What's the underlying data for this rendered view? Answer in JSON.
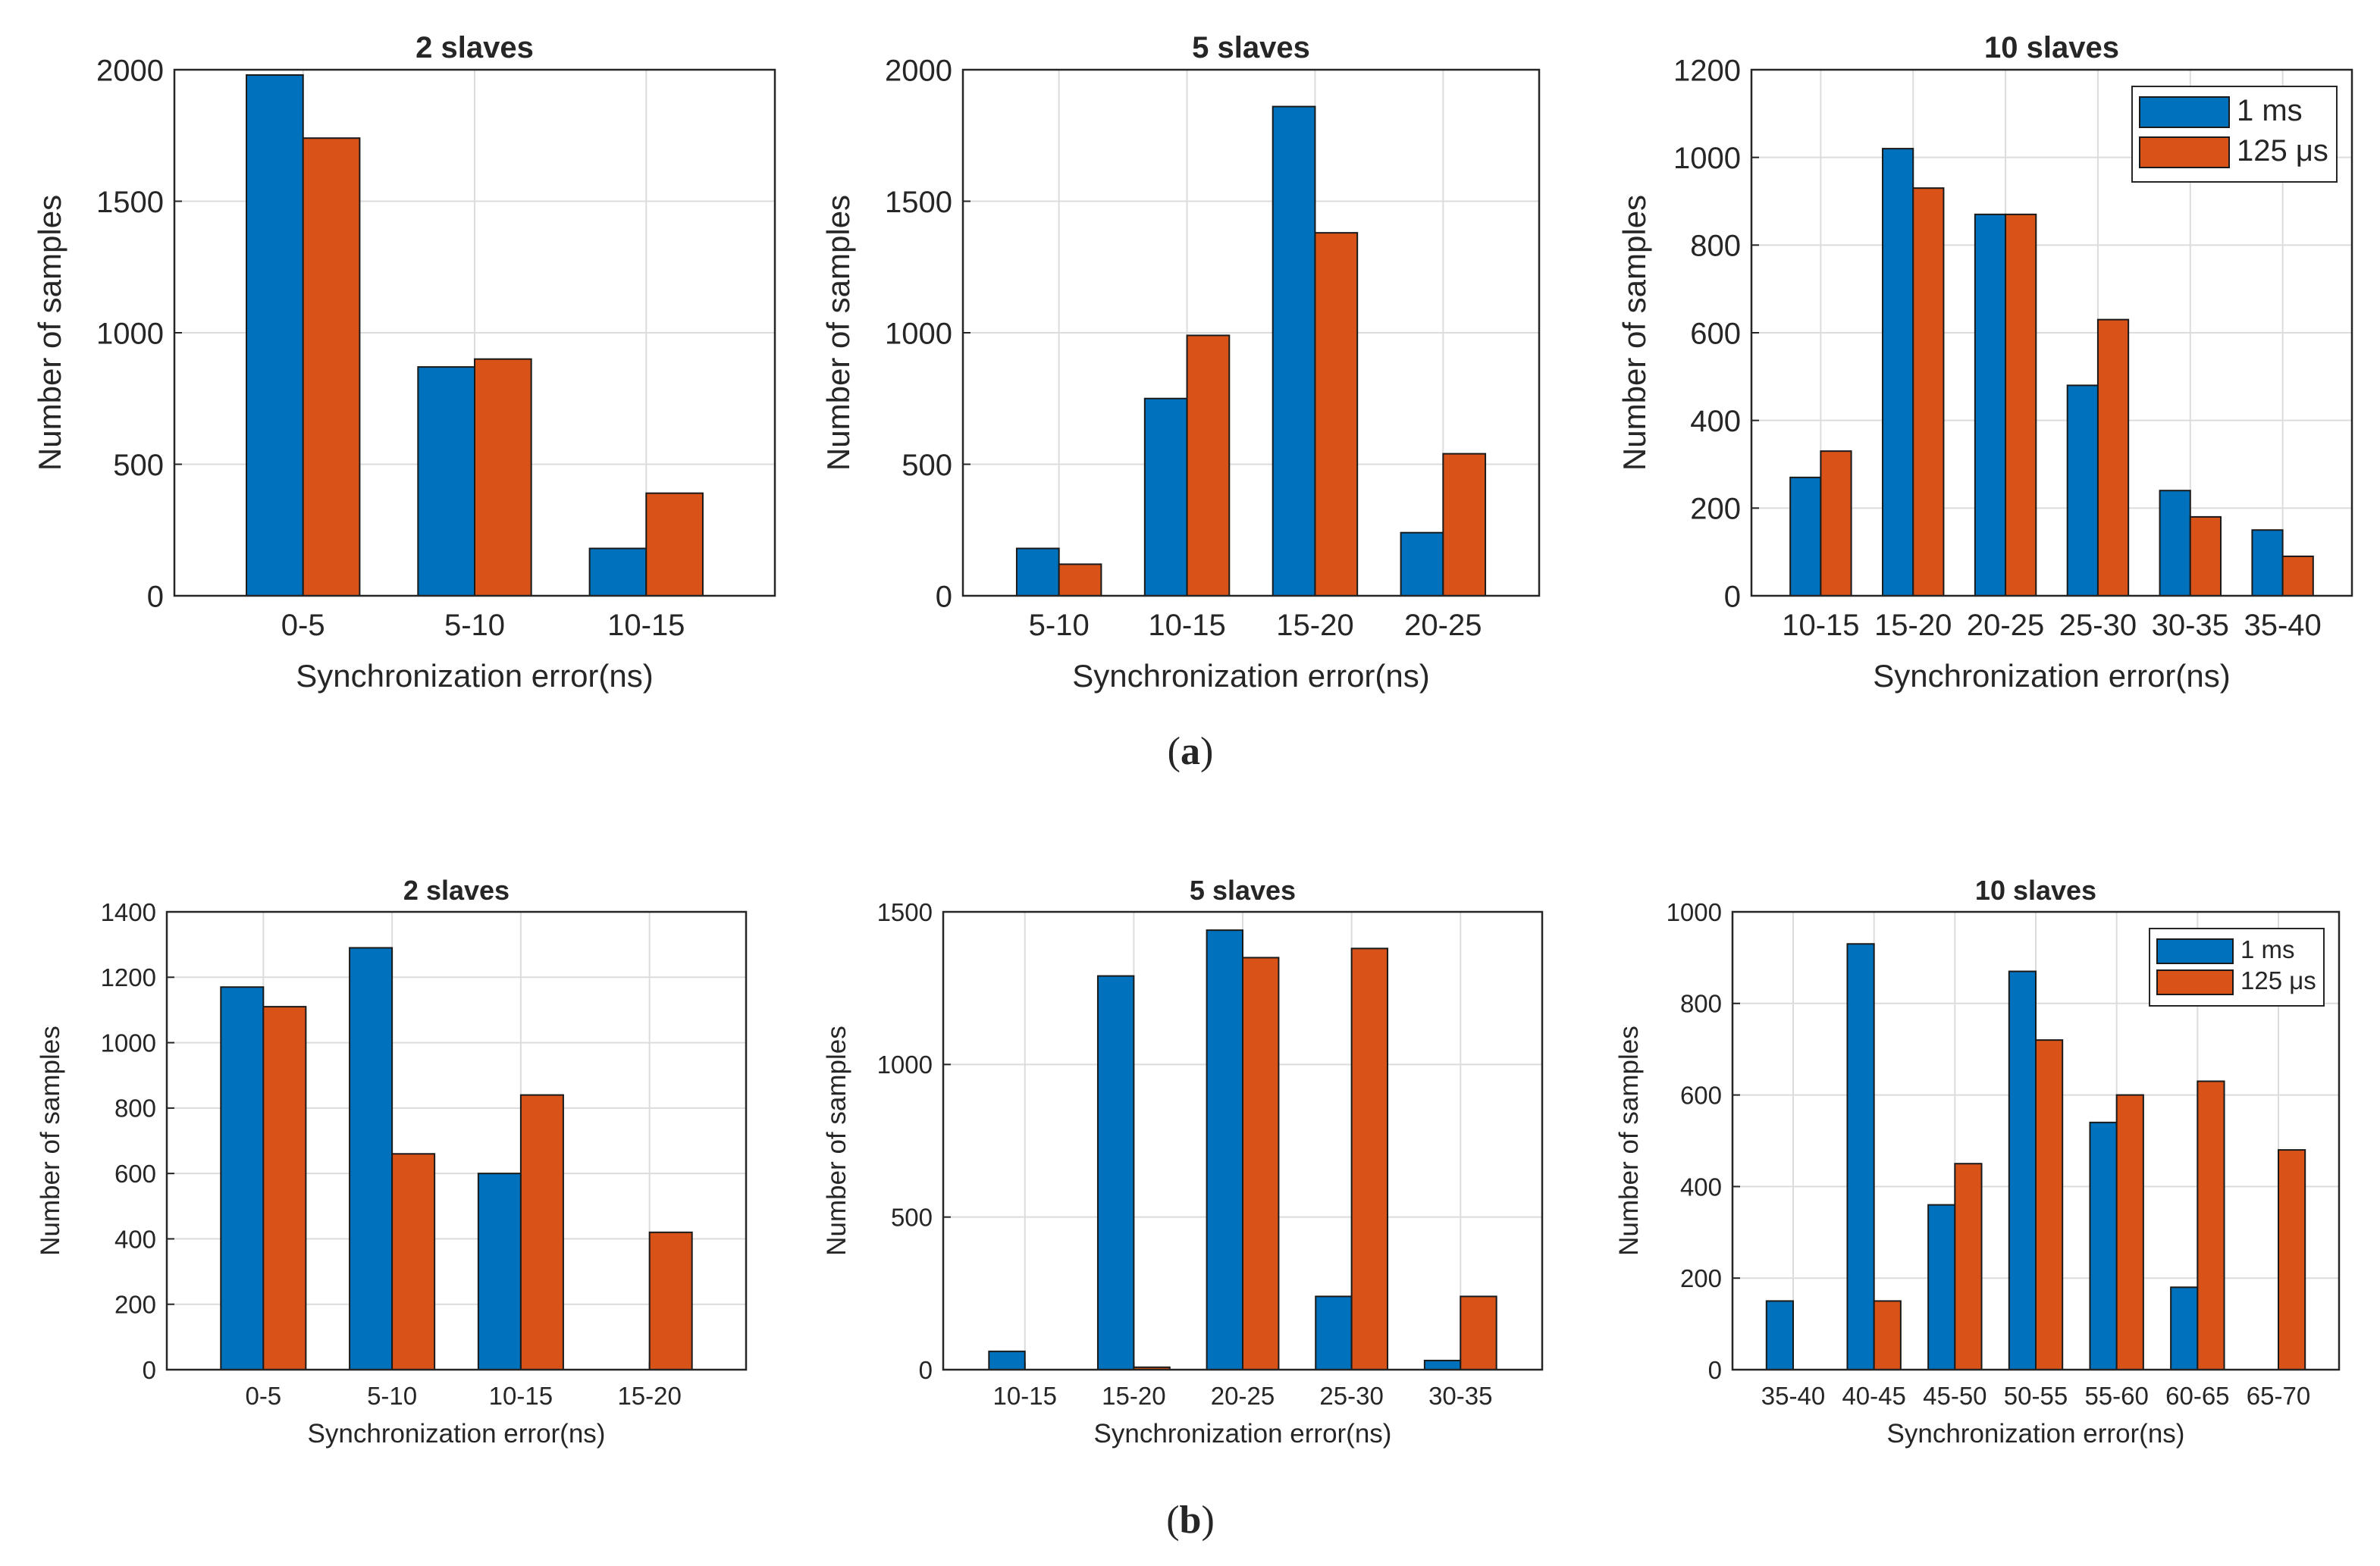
{
  "figure": {
    "panel_labels": [
      {
        "prefix": "(",
        "letter": "a",
        "suffix": ")"
      },
      {
        "prefix": "(",
        "letter": "b",
        "suffix": ")"
      }
    ]
  },
  "colors": {
    "series_1ms": "#0072BD",
    "series_125us": "#D95319",
    "grid": "#dcdcdc",
    "axis": "#262626"
  },
  "chart_data": [
    {
      "id": "a-2-slaves",
      "type": "bar",
      "title": "2 slaves",
      "xlabel": "Synchronization error(ns)",
      "ylabel": "Number of samples",
      "categories": [
        "0-5",
        "5-10",
        "10-15"
      ],
      "ylim": [
        0,
        2000
      ],
      "yticks": [
        0,
        500,
        1000,
        1500,
        2000
      ],
      "series": [
        {
          "name": "1 ms",
          "values": [
            1980,
            870,
            180
          ]
        },
        {
          "name": "125 μs",
          "values": [
            1740,
            900,
            390
          ]
        }
      ]
    },
    {
      "id": "a-5-slaves",
      "type": "bar",
      "title": "5 slaves",
      "xlabel": "Synchronization error(ns)",
      "ylabel": "Number of samples",
      "categories": [
        "5-10",
        "10-15",
        "15-20",
        "20-25"
      ],
      "ylim": [
        0,
        2000
      ],
      "yticks": [
        0,
        500,
        1000,
        1500,
        2000
      ],
      "series": [
        {
          "name": "1 ms",
          "values": [
            180,
            750,
            1860,
            240
          ]
        },
        {
          "name": "125 μs",
          "values": [
            120,
            990,
            1380,
            540
          ]
        }
      ]
    },
    {
      "id": "a-10-slaves",
      "type": "bar",
      "title": "10 slaves",
      "xlabel": "Synchronization error(ns)",
      "ylabel": "Number of samples",
      "categories": [
        "10-15",
        "15-20",
        "20-25",
        "25-30",
        "30-35",
        "35-40"
      ],
      "ylim": [
        0,
        1200
      ],
      "yticks": [
        0,
        200,
        400,
        600,
        800,
        1000,
        1200
      ],
      "legend": {
        "position": "top-right",
        "entries": [
          "1 ms",
          "125 μs"
        ]
      },
      "series": [
        {
          "name": "1 ms",
          "values": [
            270,
            1020,
            870,
            480,
            240,
            150
          ]
        },
        {
          "name": "125 μs",
          "values": [
            330,
            930,
            870,
            630,
            180,
            90
          ]
        }
      ]
    },
    {
      "id": "b-2-slaves",
      "type": "bar",
      "title": "2 slaves",
      "xlabel": "Synchronization error(ns)",
      "ylabel": "Number of samples",
      "categories": [
        "0-5",
        "5-10",
        "10-15",
        "15-20"
      ],
      "ylim": [
        0,
        1400
      ],
      "yticks": [
        0,
        200,
        400,
        600,
        800,
        1000,
        1200,
        1400
      ],
      "series": [
        {
          "name": "1 ms",
          "values": [
            1170,
            1290,
            600,
            0
          ]
        },
        {
          "name": "125 μs",
          "values": [
            1110,
            660,
            840,
            420
          ]
        }
      ]
    },
    {
      "id": "b-5-slaves",
      "type": "bar",
      "title": "5 slaves",
      "xlabel": "Synchronization error(ns)",
      "ylabel": "Number of samples",
      "categories": [
        "10-15",
        "15-20",
        "20-25",
        "25-30",
        "30-35"
      ],
      "ylim": [
        0,
        1500
      ],
      "yticks": [
        0,
        500,
        1000,
        1500
      ],
      "series": [
        {
          "name": "1 ms",
          "values": [
            60,
            1290,
            1440,
            240,
            30
          ]
        },
        {
          "name": "125 μs",
          "values": [
            0,
            8,
            1350,
            1380,
            240
          ]
        }
      ]
    },
    {
      "id": "b-10-slaves",
      "type": "bar",
      "title": "10 slaves",
      "xlabel": "Synchronization error(ns)",
      "ylabel": "Number of samples",
      "categories": [
        "35-40",
        "40-45",
        "45-50",
        "50-55",
        "55-60",
        "60-65",
        "65-70"
      ],
      "ylim": [
        0,
        1000
      ],
      "yticks": [
        0,
        200,
        400,
        600,
        800,
        1000
      ],
      "legend": {
        "position": "top-right",
        "entries": [
          "1 ms",
          "125 μs"
        ]
      },
      "series": [
        {
          "name": "1 ms",
          "values": [
            150,
            930,
            360,
            870,
            540,
            180,
            0
          ]
        },
        {
          "name": "125 μs",
          "values": [
            0,
            150,
            450,
            720,
            600,
            630,
            480
          ]
        }
      ]
    }
  ]
}
